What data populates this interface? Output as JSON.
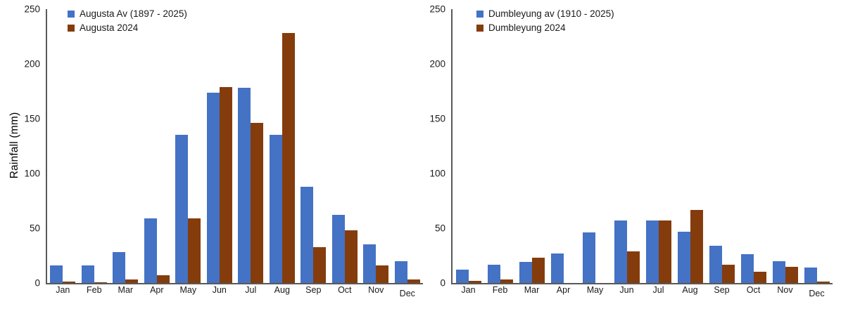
{
  "figure": {
    "background": "#FFFFFF",
    "axis_color": "#595959",
    "text_color": "#1A1A1A",
    "series_colors": {
      "average": "#4472C4",
      "year_2024": "#843C0C"
    }
  },
  "chart_data": [
    {
      "type": "bar",
      "id": "augusta",
      "title": "",
      "xlabel": "",
      "ylabel": "Rainfall (mm)",
      "ylim": [
        0,
        250
      ],
      "yticks": [
        0,
        50,
        100,
        150,
        200,
        250
      ],
      "grid": false,
      "legend_position": "top-left-inside",
      "categories": [
        "Jan",
        "Feb",
        "Mar",
        "Apr",
        "May",
        "Jun",
        "Jul",
        "Aug",
        "Sep",
        "Oct",
        "Nov",
        "Dec"
      ],
      "series": [
        {
          "name": "Augusta Av (1897 - 2025)",
          "color": "#4472C4",
          "values": [
            16,
            16,
            28,
            59,
            135,
            174,
            178,
            135,
            88,
            62,
            35,
            20
          ]
        },
        {
          "name": "Augusta 2024",
          "color": "#843C0C",
          "values": [
            1,
            0.5,
            3,
            7,
            59,
            179,
            146,
            228,
            33,
            48,
            16,
            3
          ]
        }
      ]
    },
    {
      "type": "bar",
      "id": "dumbleyung",
      "title": "",
      "xlabel": "",
      "ylabel": "",
      "ylim": [
        0,
        250
      ],
      "yticks": [
        0,
        50,
        100,
        150,
        200,
        250
      ],
      "grid": false,
      "legend_position": "top-left-inside",
      "categories": [
        "Jan",
        "Feb",
        "Mar",
        "Apr",
        "May",
        "Jun",
        "Jul",
        "Aug",
        "Sep",
        "Oct",
        "Nov",
        "Dec"
      ],
      "series": [
        {
          "name": "Dumbleyung av (1910 - 2025)",
          "color": "#4472C4",
          "values": [
            12,
            17,
            19,
            27,
            46,
            57,
            57,
            47,
            34,
            26,
            20,
            14
          ]
        },
        {
          "name": "Dumbleyung 2024",
          "color": "#843C0C",
          "values": [
            2,
            3,
            23,
            0,
            0,
            29,
            57,
            67,
            17,
            10,
            15,
            1
          ]
        }
      ]
    }
  ]
}
